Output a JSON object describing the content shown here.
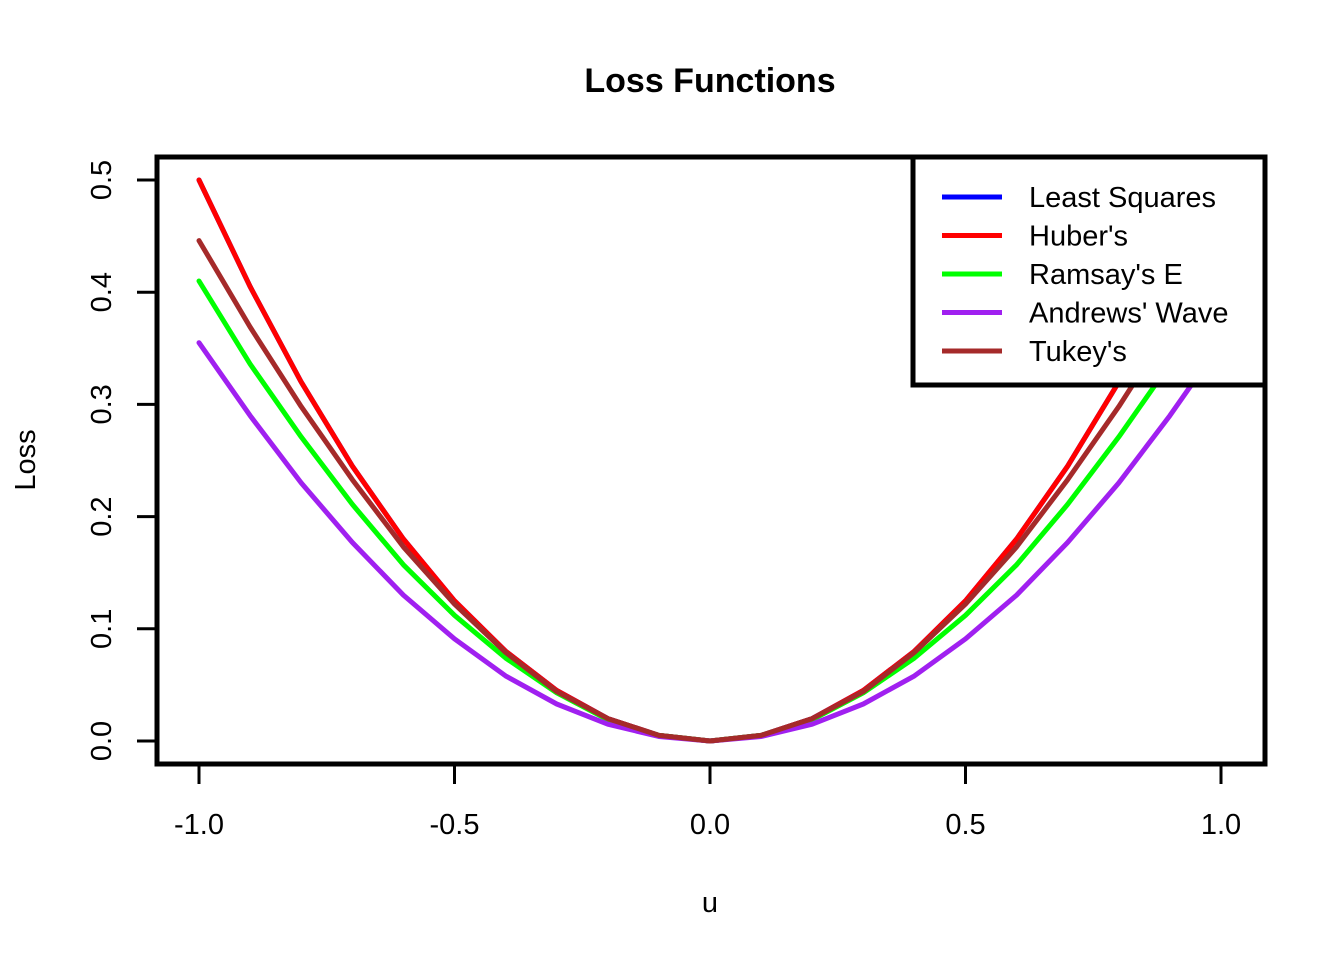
{
  "chart_data": {
    "type": "line",
    "title": "Loss Functions",
    "xlabel": "u",
    "ylabel": "Loss",
    "xlim": [
      -1.08,
      1.08
    ],
    "ylim": [
      -0.02,
      0.52
    ],
    "xticks": [
      -1.0,
      -0.5,
      0.0,
      0.5,
      1.0
    ],
    "xtick_labels": [
      "-1.0",
      "-0.5",
      "0.0",
      "0.5",
      "1.0"
    ],
    "yticks": [
      0.0,
      0.1,
      0.2,
      0.3,
      0.4,
      0.5
    ],
    "ytick_labels": [
      "0.0",
      "0.1",
      "0.2",
      "0.3",
      "0.4",
      "0.5"
    ],
    "grid": false,
    "legend_position": "top-right",
    "x": [
      -1.0,
      -0.9,
      -0.8,
      -0.7,
      -0.6,
      -0.5,
      -0.4,
      -0.3,
      -0.2,
      -0.1,
      0.0,
      0.1,
      0.2,
      0.3,
      0.4,
      0.5,
      0.6,
      0.7,
      0.8,
      0.9,
      1.0
    ],
    "series": [
      {
        "name": "Least Squares",
        "color": "#0000ff",
        "values": [
          0.5,
          0.405,
          0.32,
          0.245,
          0.18,
          0.125,
          0.08,
          0.045,
          0.02,
          0.005,
          0.0,
          0.005,
          0.02,
          0.045,
          0.08,
          0.125,
          0.18,
          0.245,
          0.32,
          0.405,
          0.5
        ]
      },
      {
        "name": "Huber's",
        "color": "#ff0000",
        "values": [
          0.5,
          0.405,
          0.32,
          0.245,
          0.18,
          0.125,
          0.08,
          0.045,
          0.02,
          0.005,
          0.0,
          0.005,
          0.02,
          0.045,
          0.08,
          0.125,
          0.18,
          0.245,
          0.32,
          0.405,
          0.5
        ]
      },
      {
        "name": "Ramsay's E",
        "color": "#00ff00",
        "values": [
          0.41,
          0.336,
          0.271,
          0.211,
          0.157,
          0.112,
          0.074,
          0.043,
          0.019,
          0.005,
          0.0,
          0.005,
          0.019,
          0.043,
          0.074,
          0.112,
          0.157,
          0.211,
          0.271,
          0.336,
          0.41
        ]
      },
      {
        "name": "Andrews' Wave",
        "color": "#a020f0",
        "values": [
          0.355,
          0.29,
          0.23,
          0.177,
          0.13,
          0.091,
          0.058,
          0.033,
          0.015,
          0.004,
          0.0,
          0.004,
          0.015,
          0.033,
          0.058,
          0.091,
          0.13,
          0.177,
          0.23,
          0.29,
          0.355
        ]
      },
      {
        "name": "Tukey's",
        "color": "#a52a2a",
        "values": [
          0.446,
          0.369,
          0.298,
          0.233,
          0.173,
          0.122,
          0.079,
          0.044,
          0.02,
          0.005,
          0.0,
          0.005,
          0.02,
          0.044,
          0.079,
          0.122,
          0.173,
          0.233,
          0.298,
          0.369,
          0.446
        ]
      }
    ]
  }
}
